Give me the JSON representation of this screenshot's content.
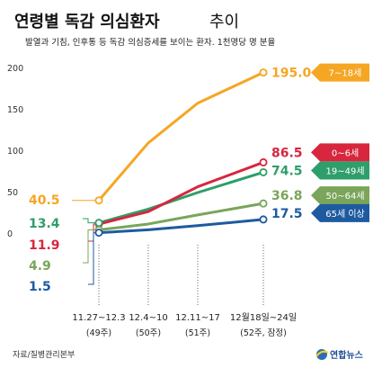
{
  "header": {
    "title_main": "연령별 독감 의심환자",
    "title_suffix": "추이",
    "subtitle": "발열과 기침, 인후통 등 독감 의심증세를 보이는 환자. 1천명당 명 분율"
  },
  "footer": {
    "source": "자료/질병관리본부",
    "logo_text": "연합뉴스"
  },
  "chart_data": {
    "type": "line",
    "title": "연령별 독감 의심환자 추이",
    "subtitle": "발열과 기침, 인후통 등 독감 의심증세를 보이는 환자. 1천명당 명 분율",
    "ylim": [
      0,
      200
    ],
    "yticks": [
      "0",
      "50",
      "100",
      "150",
      "200"
    ],
    "categories": [
      {
        "line1": "11.27~12.3",
        "line2": "(49주)"
      },
      {
        "line1": "12.4~10",
        "line2": "(50주)"
      },
      {
        "line1": "12.11~17",
        "line2": "(51주)"
      },
      {
        "line1": "12월18일~24일",
        "line2": "(52주, 잠정)"
      }
    ],
    "grid": false,
    "legend": "right of lines (end labels)",
    "series": [
      {
        "name": "7~18세",
        "color": "#f5a623",
        "values": [
          40.5,
          110,
          158,
          195.0
        ],
        "start_label": "40.5",
        "end_label": "195.0"
      },
      {
        "name": "0~6세",
        "color": "#d7263d",
        "values": [
          11.9,
          27,
          57,
          86.5
        ],
        "start_label": "11.9",
        "end_label": "86.5"
      },
      {
        "name": "19~49세",
        "color": "#2e9e6a",
        "values": [
          13.4,
          30,
          50,
          74.5
        ],
        "start_label": "13.4",
        "end_label": "74.5"
      },
      {
        "name": "50~64세",
        "color": "#7aa55a",
        "values": [
          4.9,
          12,
          23,
          36.8
        ],
        "start_label": "4.9",
        "end_label": "36.8"
      },
      {
        "name": "65세 이상",
        "color": "#1e5aa0",
        "values": [
          1.5,
          5,
          10,
          17.5
        ],
        "start_label": "1.5",
        "end_label": "17.5"
      }
    ]
  }
}
